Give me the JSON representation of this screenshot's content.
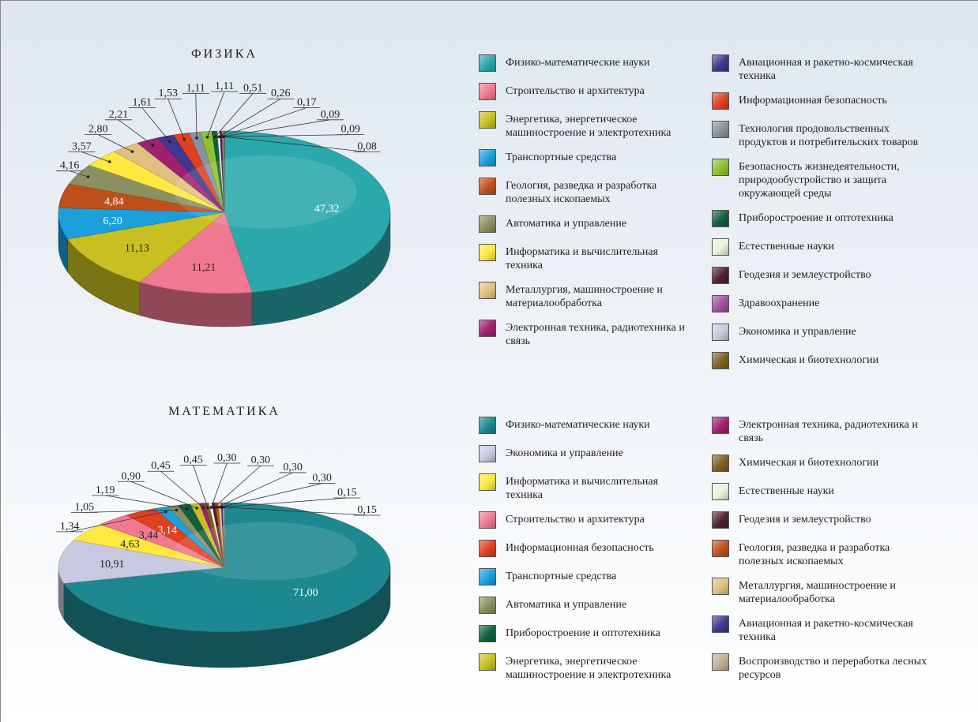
{
  "chart_data": [
    {
      "type": "pie",
      "title": "ФИЗИКА",
      "categories": [
        "Физико-математические науки",
        "Строительство и архитектура",
        "Энергетика, энергетическое машиностроение и электротехника",
        "Транспортные средства",
        "Геология, разведка и разработка полезных ископаемых",
        "Автоматика и управление",
        "Информатика и вычислительная техника",
        "Металлургия, машиностроение и материалообработка",
        "Электронная техника, радиотехника и связь",
        "Авиационная и ракетно-космическая техника",
        "Информационная безопасность",
        "Технология продовольственных продуктов и потребительских товаров",
        "Безопасность жизнедеятельности, природообустройство и защита окружающей среды",
        "Приборостроение и оптотехника",
        "Естественные науки",
        "Геодезия и землеустройство",
        "Здравоохранение",
        "Экономика и управление",
        "Химическая и биотехнологии"
      ],
      "values": [
        47.32,
        11.21,
        11.13,
        6.2,
        4.84,
        4.16,
        3.57,
        2.8,
        2.21,
        1.61,
        1.53,
        1.11,
        1.11,
        0.51,
        0.26,
        0.17,
        0.09,
        0.09,
        0.08
      ],
      "value_labels": [
        "47,32",
        "11,21",
        "11,13",
        "6,20",
        "4,84",
        "4,16",
        "3,57",
        "2,80",
        "2,21",
        "1,61",
        "1,53",
        "1,11",
        "1,11",
        "0,51",
        "0,26",
        "0,17",
        "0,09",
        "0,09",
        "0,08"
      ],
      "colors": [
        "#2aa8ac",
        "#f07890",
        "#c8c020",
        "#1ba0dc",
        "#c0501a",
        "#8a9060",
        "#ffe840",
        "#e0c080",
        "#a02070",
        "#403890",
        "#e04020",
        "#8890a0",
        "#90c030",
        "#106040",
        "#e8f4d8",
        "#502030",
        "#a050a0",
        "#c8c8e0",
        "#806020"
      ]
    },
    {
      "type": "pie",
      "title": "МАТЕМАТИКА",
      "categories": [
        "Физико-математические науки",
        "Экономика и управление",
        "Информатика и вычислительная техника",
        "Строительство и архитектура",
        "Информационная безопасность",
        "Транспортные средства",
        "Автоматика и управление",
        "Приборостроение и оптотехника",
        "Энергетика, энергетическое машиностроение и электротехника",
        "Электронная техника, радиотехника и связь",
        "Химическая и биотехнологии",
        "Естественные науки",
        "Геодезия и землеустройство",
        "Геология, разведка и разработка полезных ископаемых",
        "Металлургия, машиностроение и материалообработка",
        "Авиационная и ракетно-космическая техника",
        "Воспроизводство и переработка лесных ресурсов"
      ],
      "values": [
        71.0,
        10.91,
        4.63,
        3.44,
        3.14,
        1.34,
        1.05,
        1.19,
        0.9,
        0.45,
        0.45,
        0.3,
        0.3,
        0.3,
        0.3,
        0.15,
        0.15
      ],
      "value_labels": [
        "71,00",
        "10,91",
        "4,63",
        "3,44",
        "3,14",
        "1,34",
        "1,05",
        "1,19",
        "0,90",
        "0,45",
        "0,45",
        "0,30",
        "0,30",
        "0,30",
        "0,30",
        "0,15",
        "0,15"
      ],
      "colors": [
        "#1e8890",
        "#c8c8e0",
        "#ffe840",
        "#f07890",
        "#e04020",
        "#1ba0dc",
        "#8a9060",
        "#106040",
        "#c8c020",
        "#a02070",
        "#806020",
        "#e8f4d8",
        "#502030",
        "#c0501a",
        "#e0c080",
        "#403890",
        "#c0b090"
      ]
    }
  ]
}
